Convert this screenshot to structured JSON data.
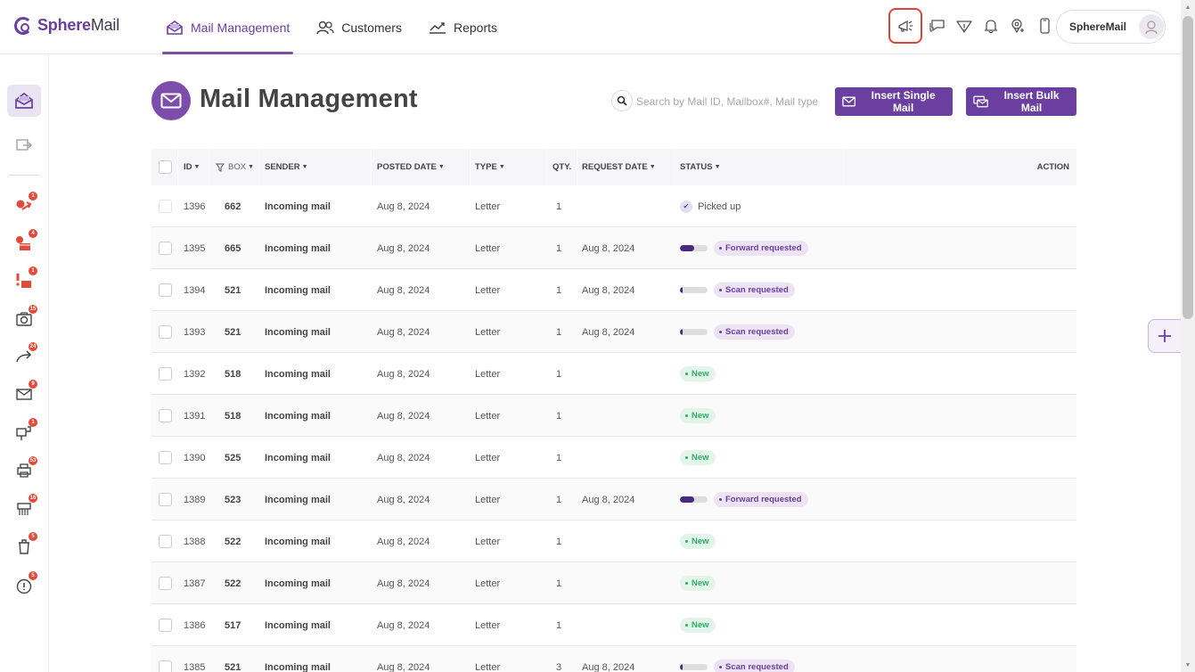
{
  "app": {
    "name_prefix": "Sphere",
    "name_suffix": "Mail"
  },
  "nav": [
    {
      "label": "Mail Management",
      "icon": "mail-open-icon",
      "active": true
    },
    {
      "label": "Customers",
      "icon": "users-icon",
      "active": false
    },
    {
      "label": "Reports",
      "icon": "chart-line-icon",
      "active": false
    }
  ],
  "account": {
    "name": "SphereMail"
  },
  "page": {
    "title": "Mail Management"
  },
  "search": {
    "placeholder": "Search by Mail ID, Mailbox#, Mail type"
  },
  "buttons": {
    "insert_single": "Insert Single Mail",
    "insert_bulk": "Insert Bulk Mail"
  },
  "sidebar_badges": [
    "1",
    "4",
    "1",
    "15",
    "24",
    "9",
    "1",
    "53",
    "16",
    "5",
    "5"
  ],
  "table": {
    "columns": {
      "id": "ID",
      "box": "BOX",
      "sender": "SENDER",
      "posted_date": "POSTED DATE",
      "type": "TYPE",
      "qty": "QTY.",
      "request_date": "REQUEST DATE",
      "status": "STATUS",
      "action": "ACTION"
    },
    "rows": [
      {
        "id": "1396",
        "box": "662",
        "sender": "Incoming mail",
        "posted": "Aug 8, 2024",
        "type": "Letter",
        "qty": "1",
        "request": "",
        "status": "Picked up",
        "kind": "picked",
        "progress": 0
      },
      {
        "id": "1395",
        "box": "665",
        "sender": "Incoming mail",
        "posted": "Aug 8, 2024",
        "type": "Letter",
        "qty": "1",
        "request": "Aug 8, 2024",
        "status": "Forward requested",
        "kind": "purple",
        "progress": 0.5
      },
      {
        "id": "1394",
        "box": "521",
        "sender": "Incoming mail",
        "posted": "Aug 8, 2024",
        "type": "Letter",
        "qty": "1",
        "request": "Aug 8, 2024",
        "status": "Scan requested",
        "kind": "purple",
        "progress": 0.1
      },
      {
        "id": "1393",
        "box": "521",
        "sender": "Incoming mail",
        "posted": "Aug 8, 2024",
        "type": "Letter",
        "qty": "1",
        "request": "Aug 8, 2024",
        "status": "Scan requested",
        "kind": "purple",
        "progress": 0.1
      },
      {
        "id": "1392",
        "box": "518",
        "sender": "Incoming mail",
        "posted": "Aug 8, 2024",
        "type": "Letter",
        "qty": "1",
        "request": "",
        "status": "New",
        "kind": "green",
        "progress": 0
      },
      {
        "id": "1391",
        "box": "518",
        "sender": "Incoming mail",
        "posted": "Aug 8, 2024",
        "type": "Letter",
        "qty": "1",
        "request": "",
        "status": "New",
        "kind": "green",
        "progress": 0
      },
      {
        "id": "1390",
        "box": "525",
        "sender": "Incoming mail",
        "posted": "Aug 8, 2024",
        "type": "Letter",
        "qty": "1",
        "request": "",
        "status": "New",
        "kind": "green",
        "progress": 0
      },
      {
        "id": "1389",
        "box": "523",
        "sender": "Incoming mail",
        "posted": "Aug 8, 2024",
        "type": "Letter",
        "qty": "1",
        "request": "Aug 8, 2024",
        "status": "Forward requested",
        "kind": "purple",
        "progress": 0.5
      },
      {
        "id": "1388",
        "box": "522",
        "sender": "Incoming mail",
        "posted": "Aug 8, 2024",
        "type": "Letter",
        "qty": "1",
        "request": "",
        "status": "New",
        "kind": "green",
        "progress": 0
      },
      {
        "id": "1387",
        "box": "522",
        "sender": "Incoming mail",
        "posted": "Aug 8, 2024",
        "type": "Letter",
        "qty": "1",
        "request": "",
        "status": "New",
        "kind": "green",
        "progress": 0
      },
      {
        "id": "1386",
        "box": "517",
        "sender": "Incoming mail",
        "posted": "Aug 8, 2024",
        "type": "Letter",
        "qty": "1",
        "request": "",
        "status": "New",
        "kind": "green",
        "progress": 0
      },
      {
        "id": "1385",
        "box": "521",
        "sender": "Incoming mail",
        "posted": "Aug 8, 2024",
        "type": "Letter",
        "qty": "3",
        "request": "Aug 8, 2024",
        "status": "Scan requested",
        "kind": "purple",
        "progress": 0.1
      }
    ]
  },
  "colors": {
    "accent": "#6b3fa0",
    "highlight": "#d9453b",
    "badge": "#e24b3b",
    "new_text": "#2fae64"
  }
}
